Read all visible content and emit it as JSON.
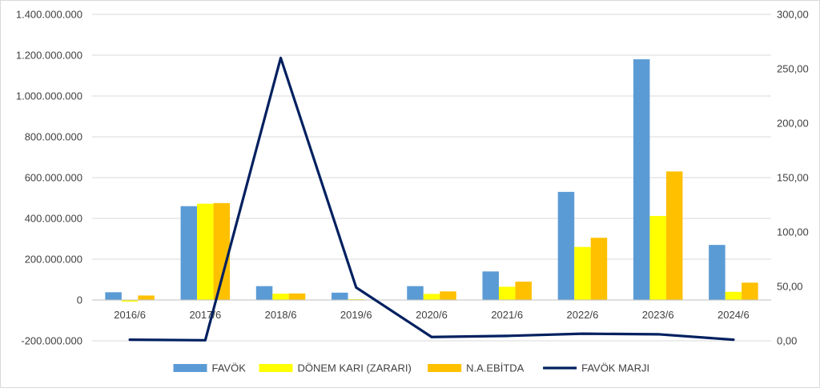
{
  "chart_data": {
    "type": "bar",
    "categories": [
      "2016/6",
      "2017/6",
      "2018/6",
      "2019/6",
      "2020/6",
      "2021/6",
      "2022/6",
      "2023/6",
      "2024/6"
    ],
    "series": [
      {
        "name": "FAVÖK",
        "type": "bar",
        "axis": "left",
        "color": "#5B9BD5",
        "values": [
          38000000,
          460000000,
          68000000,
          36000000,
          68000000,
          140000000,
          530000000,
          1180000000,
          270000000
        ]
      },
      {
        "name": "DÖNEM KARI (ZARARI)",
        "type": "bar",
        "axis": "left",
        "color": "#FFFF00",
        "values": [
          -8000000,
          472000000,
          31000000,
          4000000,
          30000000,
          65000000,
          260000000,
          412000000,
          40000000
        ]
      },
      {
        "name": "N.A.EBİTDA",
        "type": "bar",
        "axis": "left",
        "color": "#FFC000",
        "values": [
          22000000,
          475000000,
          32000000,
          0,
          42000000,
          90000000,
          305000000,
          630000000,
          85000000
        ]
      },
      {
        "name": "FAVÖK MARJI",
        "type": "line",
        "axis": "right",
        "color": "#002060",
        "values": [
          1.0,
          0.5,
          260.0,
          49.0,
          3.5,
          4.5,
          6.5,
          6.0,
          1.0
        ]
      }
    ],
    "y_left": {
      "min": -200000000,
      "max": 1400000000,
      "ticks": [
        -200000000,
        0,
        200000000,
        400000000,
        600000000,
        800000000,
        1000000000,
        1200000000,
        1400000000
      ],
      "tick_labels": [
        "-200.000.000",
        "0",
        "200.000.000",
        "400.000.000",
        "600.000.000",
        "800.000.000",
        "1.000.000.000",
        "1.200.000.000",
        "1.400.000.000"
      ]
    },
    "y_right": {
      "min": 0,
      "max": 300,
      "ticks": [
        0,
        50,
        100,
        150,
        200,
        250,
        300
      ],
      "tick_labels": [
        "0,00",
        "50,00",
        "100,00",
        "150,00",
        "200,00",
        "250,00",
        "300,00"
      ]
    },
    "title": "",
    "grid": true,
    "legend_position": "bottom"
  }
}
